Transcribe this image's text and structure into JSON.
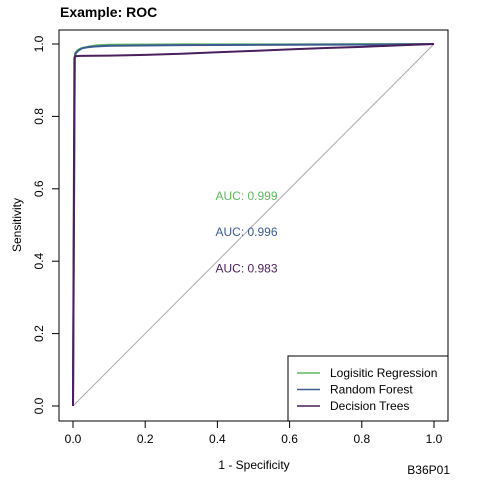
{
  "chart_data": {
    "type": "line",
    "title": "Example: ROC",
    "xlabel": "1 - Specificity",
    "ylabel": "Sensitivity",
    "xlim": [
      0,
      1
    ],
    "ylim": [
      0,
      1
    ],
    "x_ticks": [
      "0.0",
      "0.2",
      "0.4",
      "0.6",
      "0.8",
      "1.0"
    ],
    "y_ticks": [
      "0.0",
      "0.2",
      "0.4",
      "0.6",
      "0.8",
      "1.0"
    ],
    "x_tick_values": [
      0,
      0.2,
      0.4,
      0.6,
      0.8,
      1.0
    ],
    "y_tick_values": [
      0,
      0.2,
      0.4,
      0.6,
      0.8,
      1.0
    ],
    "reference_line": {
      "x": [
        0,
        1
      ],
      "y": [
        0,
        1
      ],
      "color": "#aaaaaa"
    },
    "legend_position": "bottom-right",
    "series": [
      {
        "name": "Logisitic Regression",
        "color": "#5cb85c",
        "auc_label": "AUC: 0.999",
        "x": [
          0,
          0.005,
          0.006,
          0.012,
          0.02,
          0.03,
          0.045,
          0.065,
          0.1,
          0.3,
          0.6,
          1.0
        ],
        "y": [
          0,
          0.965,
          0.975,
          0.982,
          0.987,
          0.99,
          0.993,
          0.996,
          0.998,
          0.999,
          0.999,
          1.0
        ]
      },
      {
        "name": "Random Forest",
        "color": "#3b5b92",
        "auc_label": "AUC: 0.996",
        "x": [
          0,
          0.005,
          0.008,
          0.015,
          0.025,
          0.04,
          0.06,
          0.1,
          0.3,
          0.6,
          0.9,
          1.0
        ],
        "y": [
          0,
          0.965,
          0.975,
          0.982,
          0.988,
          0.991,
          0.993,
          0.995,
          0.997,
          0.998,
          0.999,
          1.0
        ]
      },
      {
        "name": "Decision Trees",
        "color": "#4b1f5c",
        "auc_label": "AUC: 0.983",
        "x": [
          0,
          0.004,
          0.006,
          0.02,
          0.1,
          0.2,
          0.3,
          0.4,
          0.5,
          0.6,
          0.7,
          0.8,
          0.9,
          1.0
        ],
        "y": [
          0,
          0.96,
          0.966,
          0.967,
          0.968,
          0.97,
          0.973,
          0.977,
          0.981,
          0.985,
          0.989,
          0.992,
          0.996,
          1.0
        ]
      }
    ],
    "annotations": [
      {
        "text": "AUC: 0.999",
        "x": 0.5,
        "y": 0.58,
        "color": "#5cb85c"
      },
      {
        "text": "AUC: 0.996",
        "x": 0.5,
        "y": 0.48,
        "color": "#3b5b92"
      },
      {
        "text": "AUC: 0.983",
        "x": 0.5,
        "y": 0.38,
        "color": "#4b1f5c"
      }
    ],
    "corner_label": "B36P01"
  }
}
